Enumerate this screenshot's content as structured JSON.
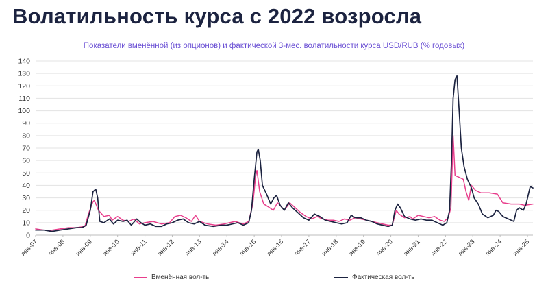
{
  "header": {
    "title": "Волатильность курса с 2022 возросла"
  },
  "chart_data": {
    "type": "line",
    "title": "Показатели вменённой (из опционов) и фактической 3-мес. волатильности курса USD/RUB (% годовых)",
    "xlabel": "",
    "ylabel": "",
    "ylim": [
      0,
      140
    ],
    "yticks": [
      0,
      10,
      20,
      30,
      40,
      50,
      60,
      70,
      80,
      90,
      100,
      110,
      120,
      130,
      140
    ],
    "xlim": [
      2007.0,
      2025.2
    ],
    "xtick_labels": [
      "янв-07",
      "янв-08",
      "янв-09",
      "янв-10",
      "янв-11",
      "янв-12",
      "янв-13",
      "янв-14",
      "янв-15",
      "янв-16",
      "янв-17",
      "янв-18",
      "янв-19",
      "янв-20",
      "янв-21",
      "янв-22",
      "янв-23",
      "янв-24",
      "янв-25"
    ],
    "grid": "horizontal",
    "legend_position": "bottom",
    "series": [
      {
        "name": "Вменённая вол-ть",
        "color": "#e83e8c",
        "points": [
          [
            2007.0,
            5
          ],
          [
            2007.3,
            4
          ],
          [
            2007.6,
            4
          ],
          [
            2007.9,
            5
          ],
          [
            2008.2,
            6
          ],
          [
            2008.5,
            6
          ],
          [
            2008.8,
            7
          ],
          [
            2008.95,
            18
          ],
          [
            2009.1,
            27
          ],
          [
            2009.15,
            28
          ],
          [
            2009.3,
            20
          ],
          [
            2009.5,
            15
          ],
          [
            2009.7,
            16
          ],
          [
            2009.8,
            12
          ],
          [
            2010.0,
            15
          ],
          [
            2010.2,
            12
          ],
          [
            2010.4,
            11
          ],
          [
            2010.6,
            13
          ],
          [
            2010.8,
            9
          ],
          [
            2011.0,
            10
          ],
          [
            2011.3,
            11
          ],
          [
            2011.6,
            9
          ],
          [
            2011.9,
            10
          ],
          [
            2012.1,
            15
          ],
          [
            2012.3,
            16
          ],
          [
            2012.5,
            14
          ],
          [
            2012.7,
            11
          ],
          [
            2012.85,
            16
          ],
          [
            2013.0,
            11
          ],
          [
            2013.3,
            9
          ],
          [
            2013.6,
            8
          ],
          [
            2013.9,
            9
          ],
          [
            2014.1,
            10
          ],
          [
            2014.3,
            11
          ],
          [
            2014.6,
            9
          ],
          [
            2014.8,
            11
          ],
          [
            2014.95,
            25
          ],
          [
            2015.05,
            47
          ],
          [
            2015.1,
            52
          ],
          [
            2015.2,
            35
          ],
          [
            2015.35,
            25
          ],
          [
            2015.5,
            23
          ],
          [
            2015.7,
            20
          ],
          [
            2015.85,
            26
          ],
          [
            2015.95,
            24
          ],
          [
            2016.1,
            20
          ],
          [
            2016.3,
            26
          ],
          [
            2016.5,
            22
          ],
          [
            2016.7,
            18
          ],
          [
            2016.9,
            15
          ],
          [
            2017.1,
            13
          ],
          [
            2017.3,
            15
          ],
          [
            2017.5,
            13
          ],
          [
            2017.7,
            12
          ],
          [
            2017.9,
            12
          ],
          [
            2018.1,
            11
          ],
          [
            2018.3,
            13
          ],
          [
            2018.5,
            12
          ],
          [
            2018.7,
            14
          ],
          [
            2018.9,
            13
          ],
          [
            2019.1,
            12
          ],
          [
            2019.3,
            11
          ],
          [
            2019.5,
            10
          ],
          [
            2019.7,
            9
          ],
          [
            2019.9,
            8
          ],
          [
            2020.05,
            8
          ],
          [
            2020.2,
            20
          ],
          [
            2020.3,
            17
          ],
          [
            2020.5,
            14
          ],
          [
            2020.7,
            15
          ],
          [
            2020.8,
            13
          ],
          [
            2021.0,
            16
          ],
          [
            2021.2,
            15
          ],
          [
            2021.4,
            14
          ],
          [
            2021.6,
            15
          ],
          [
            2021.8,
            12
          ],
          [
            2021.95,
            11
          ],
          [
            2022.1,
            14
          ],
          [
            2022.2,
            22
          ],
          [
            2022.28,
            80
          ],
          [
            2022.35,
            48
          ],
          [
            2022.45,
            47
          ],
          [
            2022.55,
            46
          ],
          [
            2022.65,
            45
          ],
          [
            2022.75,
            35
          ],
          [
            2022.85,
            28
          ],
          [
            2022.95,
            40
          ],
          [
            2023.1,
            36
          ],
          [
            2023.3,
            34
          ],
          [
            2023.6,
            34
          ],
          [
            2023.9,
            33
          ],
          [
            2024.1,
            26
          ],
          [
            2024.4,
            25
          ],
          [
            2024.7,
            25
          ],
          [
            2024.9,
            24
          ],
          [
            2025.2,
            25
          ]
        ]
      },
      {
        "name": "Фактическая вол-ть",
        "color": "#1c2340",
        "points": [
          [
            2007.0,
            4
          ],
          [
            2007.3,
            4
          ],
          [
            2007.6,
            3
          ],
          [
            2007.9,
            4
          ],
          [
            2008.2,
            5
          ],
          [
            2008.5,
            6
          ],
          [
            2008.7,
            6
          ],
          [
            2008.85,
            8
          ],
          [
            2009.0,
            20
          ],
          [
            2009.1,
            35
          ],
          [
            2009.2,
            37
          ],
          [
            2009.27,
            30
          ],
          [
            2009.35,
            11
          ],
          [
            2009.5,
            10
          ],
          [
            2009.7,
            13
          ],
          [
            2009.85,
            9
          ],
          [
            2010.0,
            12
          ],
          [
            2010.2,
            11
          ],
          [
            2010.35,
            12
          ],
          [
            2010.5,
            8
          ],
          [
            2010.7,
            13
          ],
          [
            2010.85,
            10
          ],
          [
            2011.0,
            8
          ],
          [
            2011.2,
            9
          ],
          [
            2011.4,
            7
          ],
          [
            2011.6,
            7
          ],
          [
            2011.8,
            9
          ],
          [
            2012.0,
            10
          ],
          [
            2012.2,
            12
          ],
          [
            2012.4,
            13
          ],
          [
            2012.6,
            10
          ],
          [
            2012.8,
            9
          ],
          [
            2013.0,
            11
          ],
          [
            2013.2,
            8
          ],
          [
            2013.5,
            7
          ],
          [
            2013.8,
            8
          ],
          [
            2014.0,
            8
          ],
          [
            2014.2,
            9
          ],
          [
            2014.4,
            10
          ],
          [
            2014.6,
            8
          ],
          [
            2014.8,
            10
          ],
          [
            2014.9,
            20
          ],
          [
            2015.0,
            45
          ],
          [
            2015.1,
            67
          ],
          [
            2015.15,
            69
          ],
          [
            2015.22,
            60
          ],
          [
            2015.3,
            40
          ],
          [
            2015.45,
            33
          ],
          [
            2015.6,
            25
          ],
          [
            2015.72,
            30
          ],
          [
            2015.82,
            32
          ],
          [
            2015.95,
            24
          ],
          [
            2016.1,
            20
          ],
          [
            2016.25,
            26
          ],
          [
            2016.4,
            22
          ],
          [
            2016.6,
            18
          ],
          [
            2016.8,
            14
          ],
          [
            2017.0,
            12
          ],
          [
            2017.2,
            17
          ],
          [
            2017.4,
            15
          ],
          [
            2017.6,
            12
          ],
          [
            2017.8,
            11
          ],
          [
            2018.0,
            10
          ],
          [
            2018.2,
            9
          ],
          [
            2018.4,
            10
          ],
          [
            2018.55,
            16
          ],
          [
            2018.7,
            14
          ],
          [
            2018.9,
            14
          ],
          [
            2019.1,
            12
          ],
          [
            2019.3,
            11
          ],
          [
            2019.5,
            9
          ],
          [
            2019.7,
            8
          ],
          [
            2019.9,
            7
          ],
          [
            2020.05,
            8
          ],
          [
            2020.15,
            20
          ],
          [
            2020.25,
            25
          ],
          [
            2020.35,
            22
          ],
          [
            2020.5,
            15
          ],
          [
            2020.7,
            13
          ],
          [
            2020.9,
            12
          ],
          [
            2021.1,
            13
          ],
          [
            2021.3,
            12
          ],
          [
            2021.5,
            12
          ],
          [
            2021.7,
            10
          ],
          [
            2021.9,
            8
          ],
          [
            2022.05,
            10
          ],
          [
            2022.15,
            20
          ],
          [
            2022.22,
            60
          ],
          [
            2022.28,
            110
          ],
          [
            2022.35,
            125
          ],
          [
            2022.42,
            128
          ],
          [
            2022.5,
            100
          ],
          [
            2022.58,
            70
          ],
          [
            2022.68,
            55
          ],
          [
            2022.8,
            45
          ],
          [
            2022.95,
            38
          ],
          [
            2023.05,
            30
          ],
          [
            2023.2,
            25
          ],
          [
            2023.35,
            17
          ],
          [
            2023.55,
            14
          ],
          [
            2023.75,
            16
          ],
          [
            2023.85,
            20
          ],
          [
            2023.95,
            19
          ],
          [
            2024.1,
            15
          ],
          [
            2024.3,
            13
          ],
          [
            2024.5,
            11
          ],
          [
            2024.6,
            20
          ],
          [
            2024.7,
            22
          ],
          [
            2024.85,
            20
          ],
          [
            2024.95,
            25
          ],
          [
            2025.1,
            39
          ],
          [
            2025.2,
            38
          ]
        ]
      }
    ]
  }
}
